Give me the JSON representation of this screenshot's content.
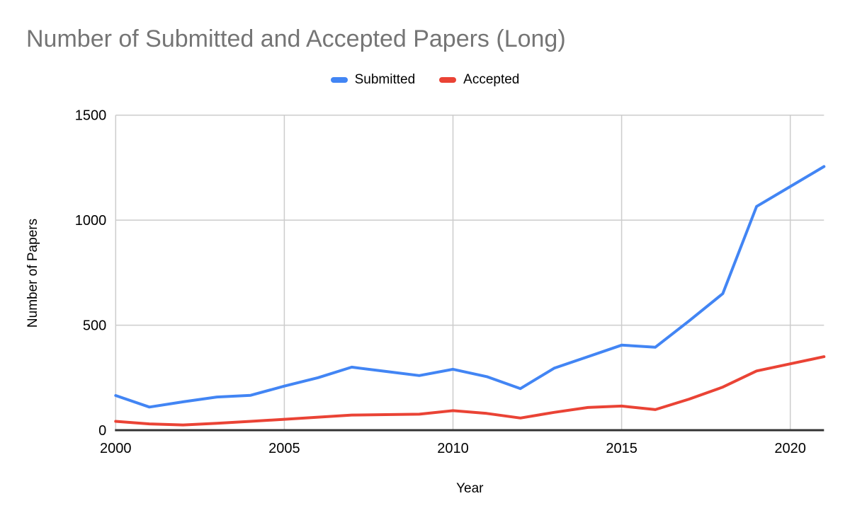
{
  "title": {
    "text": "Number of Submitted and Accepted Papers (Long)"
  },
  "legend": {
    "items": [
      {
        "label": "Submitted",
        "color": "#4285F4"
      },
      {
        "label": "Accepted",
        "color": "#EA4335"
      }
    ]
  },
  "axes": {
    "y": {
      "title": "Number of Papers"
    },
    "x": {
      "title": "Year"
    }
  },
  "colors": {
    "title_gray": "#757575",
    "gridline": "#cccccc",
    "axis_line": "#333333",
    "submitted": "#4285F4",
    "accepted": "#EA4335"
  },
  "chart_data": {
    "type": "line",
    "title": "Number of Submitted and Accepted Papers (Long)",
    "xlabel": "Year",
    "ylabel": "Number of Papers",
    "x": [
      2000,
      2001,
      2002,
      2003,
      2004,
      2005,
      2006,
      2007,
      2008,
      2009,
      2010,
      2011,
      2012,
      2013,
      2014,
      2015,
      2016,
      2017,
      2018,
      2019,
      2020,
      2021
    ],
    "series": [
      {
        "name": "Submitted",
        "color": "#4285F4",
        "values": [
          165,
          110,
          135,
          158,
          166,
          210,
          250,
          300,
          280,
          260,
          290,
          255,
          198,
          295,
          350,
          405,
          395,
          520,
          650,
          1065,
          1160,
          1255
        ]
      },
      {
        "name": "Accepted",
        "color": "#EA4335",
        "values": [
          42,
          30,
          25,
          33,
          42,
          52,
          62,
          72,
          74,
          76,
          93,
          80,
          58,
          85,
          108,
          115,
          98,
          148,
          205,
          282,
          316,
          350
        ]
      }
    ],
    "ylim": [
      0,
      1500
    ],
    "yticks": [
      0,
      500,
      1000,
      1500
    ],
    "xticks": [
      2000,
      2005,
      2010,
      2015,
      2020
    ],
    "grid": true,
    "legend_position": "top"
  }
}
